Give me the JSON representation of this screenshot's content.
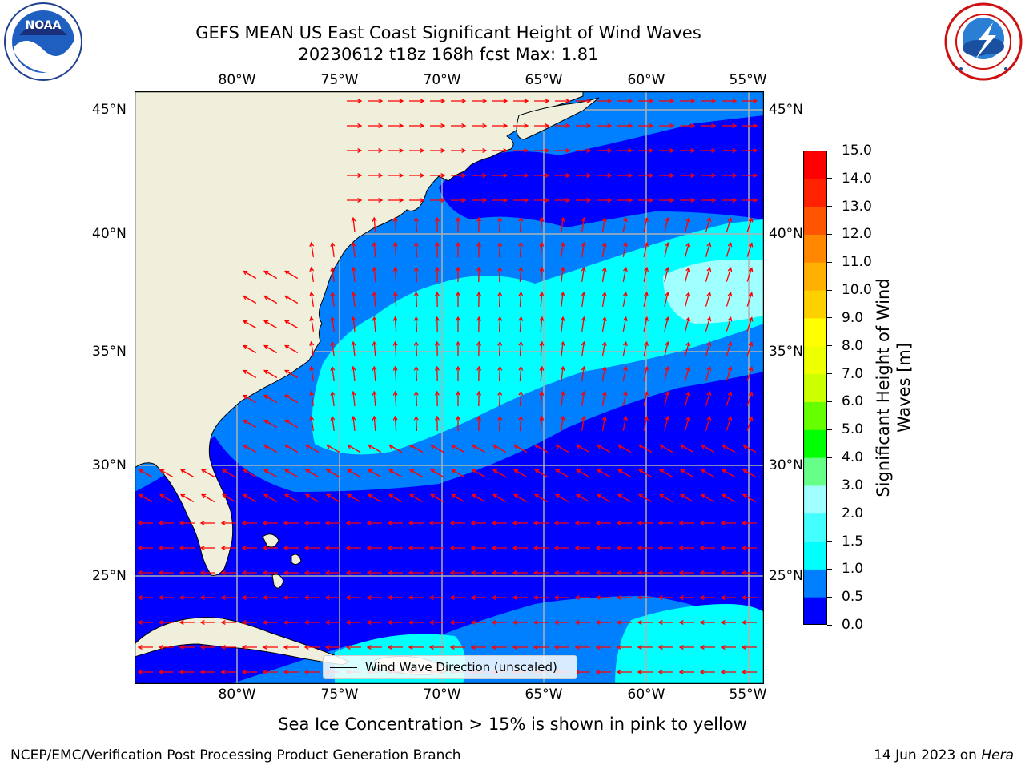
{
  "title": {
    "line1": "GEFS MEAN US East Coast Significant Height of Wind Waves",
    "line2": "20230612 t18z 168h fcst   Max: 1.81"
  },
  "logos": {
    "left": {
      "text": "NOAA",
      "icon": "noaa-logo-icon"
    },
    "right": {
      "icon": "national-weather-service-logo-icon"
    }
  },
  "axes": {
    "lon_labels": [
      "80°W",
      "75°W",
      "70°W",
      "65°W",
      "60°W",
      "55°W"
    ],
    "lat_labels": [
      "45°N",
      "40°N",
      "35°N",
      "30°N",
      "25°N"
    ],
    "lon_range": [
      -85,
      -54.2
    ],
    "lat_range": [
      20.4,
      45.8
    ]
  },
  "legend": {
    "label": "Wind Wave Direction (unscaled)"
  },
  "colorbar": {
    "label_line1": "Significant Height of Wind",
    "label_line2": "Waves [m]",
    "ticks": [
      "0.0",
      "0.5",
      "1.0",
      "1.5",
      "2.0",
      "3.0",
      "4.0",
      "5.0",
      "6.0",
      "7.0",
      "8.0",
      "9.0",
      "10.0",
      "11.0",
      "12.0",
      "13.0",
      "14.0",
      "15.0"
    ],
    "colors": [
      "#0000ff",
      "#0080ff",
      "#00ffff",
      "#44ffff",
      "#a0ffff",
      "#66ff88",
      "#00ff00",
      "#66ff00",
      "#ccff00",
      "#eeff00",
      "#ffff00",
      "#ffd000",
      "#ffb000",
      "#ff8800",
      "#ff5500",
      "#ff2200",
      "#ff0000"
    ]
  },
  "colors": {
    "land": "#efefdc",
    "ocean_low": "#0000ff",
    "ocean_mid": "#0080ff",
    "ocean_high": "#00ffff",
    "ocean_top": "#a0ffff",
    "arrow": "#ff0000",
    "grid": "#b0b0b0"
  },
  "note": "Sea Ice Concentration > 15% is shown in pink to yellow",
  "footer": {
    "left": "NCEP/EMC/Verification Post Processing Product Generation Branch",
    "right_date": "14 Jun 2023 on ",
    "right_machine": "Hera"
  }
}
